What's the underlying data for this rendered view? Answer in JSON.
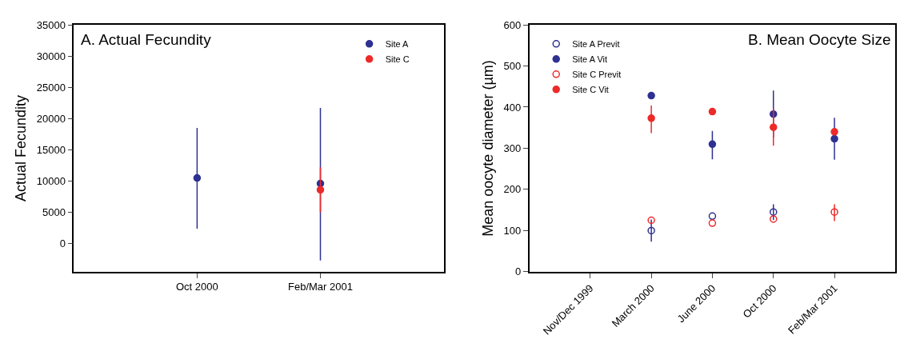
{
  "chart_data": [
    {
      "type": "scatter",
      "title": "A. Actual Fecundity",
      "ylabel": "Actual Fecundity",
      "categories": [
        "Oct 2000",
        "Feb/Mar 2001"
      ],
      "ylim": [
        -4500,
        35000
      ],
      "yticks": [
        0,
        5000,
        10000,
        15000,
        20000,
        25000,
        30000,
        35000
      ],
      "legend": "top right",
      "marker": "circle",
      "series": [
        {
          "name": "Site A",
          "color": "#2e3192",
          "values": [
            10500,
            9600
          ],
          "errors": [
            [
              2400,
              18500
            ],
            [
              -2700,
              21700
            ]
          ]
        },
        {
          "name": "Site C",
          "color": "#ed2a2a",
          "values": [
            null,
            8600
          ],
          "errors": [
            null,
            [
              5000,
              12200
            ]
          ]
        }
      ]
    },
    {
      "type": "scatter",
      "title": "B. Mean Oocyte Size",
      "ylabel": "Mean oocyte diameter (µm)",
      "categories": [
        "Nov/Dec 1999",
        "March 2000",
        "June 2000",
        "Oct 2000",
        "Feb/Mar 2001"
      ],
      "ylim": [
        0,
        600
      ],
      "yticks": [
        0,
        100,
        200,
        300,
        400,
        500,
        600
      ],
      "legend": "top left",
      "series": [
        {
          "name": "Site A Previt",
          "color": "#2e3192",
          "marker": "circle-open",
          "values": [
            null,
            100,
            135,
            145,
            null
          ],
          "errors": [
            null,
            [
              73,
              127
            ],
            null,
            [
              126,
              164
            ],
            null
          ]
        },
        {
          "name": "Site A Vit",
          "color": "#2e3192",
          "marker": "circle",
          "values": [
            null,
            428,
            310,
            383,
            323
          ],
          "errors": [
            null,
            null,
            [
              273,
              342
            ],
            [
              326,
              440
            ],
            [
              272,
              374
            ]
          ]
        },
        {
          "name": "Site C Previt",
          "color": "#ed2a2a",
          "marker": "circle-open",
          "values": [
            null,
            125,
            118,
            128,
            145
          ],
          "errors": [
            null,
            null,
            null,
            null,
            [
              123,
              164
            ]
          ]
        },
        {
          "name": "Site C Vit",
          "color": "#ed2a2a",
          "marker": "circle",
          "values": [
            null,
            373,
            389,
            351,
            340
          ],
          "errors": [
            null,
            [
              337,
              404
            ],
            null,
            [
              306,
              396
            ],
            null
          ]
        }
      ]
    }
  ]
}
